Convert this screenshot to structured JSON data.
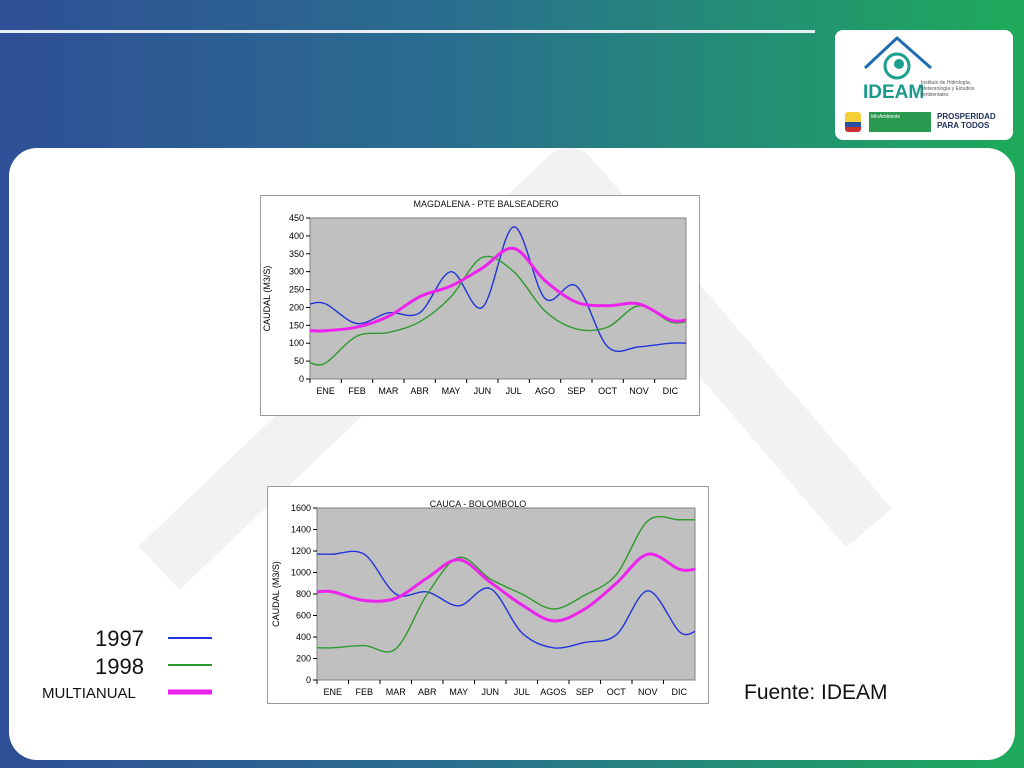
{
  "colors": {
    "series_1997": "#2233dd",
    "series_1998": "#2c9a2c",
    "series_multianual": "#ee22ee",
    "plot_bg": "#c0c0c0"
  },
  "logo": {
    "name": "IDEAM",
    "subtitle": "Instituto de Hidrología, Meteorología y Estudios Ambientales",
    "ministry": "MinAmbiente",
    "slogan": "PROSPERIDAD PARA TODOS"
  },
  "legend": {
    "items": [
      {
        "label": "1997",
        "color": "#2233dd"
      },
      {
        "label": "1998",
        "color": "#2c9a2c"
      },
      {
        "label": "MULTIANUAL",
        "color": "#ee22ee"
      }
    ]
  },
  "source": "Fuente: IDEAM",
  "chart_data": [
    {
      "type": "line",
      "title": "MAGDALENA - PTE BALSEADERO",
      "xlabel": "",
      "ylabel": "CAUDAL (M3/S)",
      "ylim": [
        0,
        450
      ],
      "yticks": [
        0,
        50,
        100,
        150,
        200,
        250,
        300,
        350,
        400,
        450
      ],
      "categories": [
        "ENE",
        "FEB",
        "MAR",
        "ABR",
        "MAY",
        "JUN",
        "JUL",
        "AGO",
        "SEP",
        "OCT",
        "NOV",
        "DIC"
      ],
      "grid": false,
      "series": [
        {
          "name": "1997",
          "values": [
            210,
            155,
            185,
            185,
            300,
            200,
            425,
            225,
            260,
            90,
            90,
            100
          ]
        },
        {
          "name": "1998",
          "values": [
            45,
            120,
            130,
            160,
            230,
            340,
            300,
            190,
            140,
            145,
            205,
            160
          ]
        },
        {
          "name": "MULTIANUAL",
          "values": [
            135,
            145,
            175,
            230,
            260,
            310,
            365,
            275,
            215,
            205,
            210,
            165
          ]
        }
      ]
    },
    {
      "type": "line",
      "title": "CAUCA - BOLOMBOLO",
      "xlabel": "",
      "ylabel": "CAUDAL (M3/S)",
      "ylim": [
        0,
        1600
      ],
      "yticks": [
        0,
        200,
        400,
        600,
        800,
        1000,
        1200,
        1400,
        1600
      ],
      "categories": [
        "ENE",
        "FEB",
        "MAR",
        "ABR",
        "MAY",
        "JUN",
        "JUL",
        "AGOS",
        "SEP",
        "OCT",
        "NOV",
        "DIC"
      ],
      "grid": false,
      "series": [
        {
          "name": "1997",
          "values": [
            1170,
            1170,
            800,
            820,
            690,
            850,
            440,
            300,
            350,
            420,
            830,
            450
          ]
        },
        {
          "name": "1998",
          "values": [
            300,
            320,
            290,
            800,
            1140,
            940,
            800,
            660,
            790,
            980,
            1480,
            1490
          ]
        },
        {
          "name": "MULTIANUAL",
          "values": [
            820,
            740,
            760,
            950,
            1120,
            910,
            700,
            550,
            660,
            900,
            1170,
            1030
          ]
        }
      ]
    }
  ]
}
